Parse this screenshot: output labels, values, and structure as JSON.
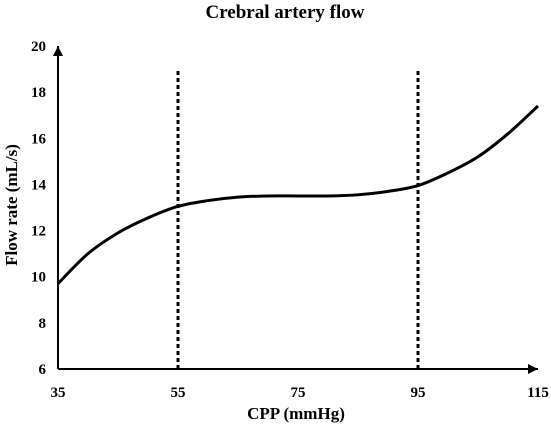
{
  "chart_data": {
    "type": "line",
    "title": "Crebral artery flow",
    "xlabel": "CPP (mmHg)",
    "ylabel": "Flow rate (mL/s)",
    "xlim": [
      35,
      115
    ],
    "ylim": [
      6,
      20
    ],
    "xticks": [
      35,
      55,
      75,
      95,
      115
    ],
    "yticks": [
      6,
      8,
      10,
      12,
      14,
      16,
      18,
      20
    ],
    "grid": false,
    "series": [
      {
        "color": "#000000",
        "x": [
          35,
          40,
          45,
          50,
          55,
          60,
          65,
          70,
          75,
          80,
          85,
          90,
          95,
          100,
          105,
          110,
          115
        ],
        "y": [
          9.7,
          11.0,
          11.9,
          12.55,
          13.05,
          13.3,
          13.45,
          13.5,
          13.5,
          13.5,
          13.55,
          13.7,
          13.95,
          14.5,
          15.2,
          16.2,
          17.4
        ]
      }
    ],
    "reference_lines": [
      {
        "axis": "x",
        "value": 55,
        "style": "dotted"
      },
      {
        "axis": "x",
        "value": 95,
        "style": "dotted"
      }
    ]
  }
}
